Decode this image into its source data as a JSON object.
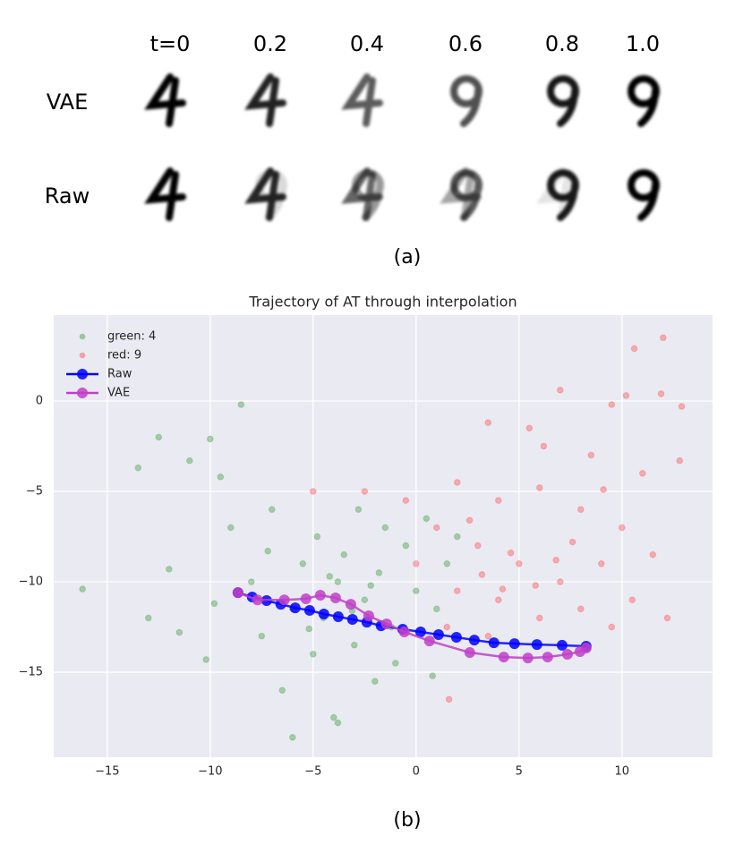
{
  "panel_a": {
    "column_labels": [
      "t=0",
      "0.2",
      "0.4",
      "0.6",
      "0.8",
      "1.0"
    ],
    "row_labels": [
      "VAE",
      "Raw"
    ],
    "caption": "(a)"
  },
  "chart_data": {
    "type": "scatter",
    "title": "Trajectory of AT through interpolation",
    "caption": "(b)",
    "xlim": [
      -17.6,
      14.4
    ],
    "ylim": [
      -19.7,
      4.75
    ],
    "xticks": [
      {
        "value": -15,
        "label": "−15"
      },
      {
        "value": -10,
        "label": "−10"
      },
      {
        "value": -5,
        "label": "−5"
      },
      0,
      5,
      10
    ],
    "yticks": [
      {
        "value": -15,
        "label": "−15"
      },
      {
        "value": -10,
        "label": "−10"
      },
      {
        "value": -5,
        "label": "−5"
      },
      0
    ],
    "grid": true,
    "legend": "upper left",
    "series": [
      {
        "name": "green: 4",
        "color": "#3a9a3a",
        "kind": "points",
        "x": [
          -16.2,
          -13.5,
          -12.5,
          -11,
          -10,
          -9.5,
          -8.5,
          -12,
          -11.5,
          -10.2,
          -9,
          -8,
          -7.5,
          -7,
          -6.5,
          -6,
          -5.5,
          -5,
          -4.8,
          -4.5,
          -4,
          -3.8,
          -3.5,
          -3,
          -2.8,
          -2.5,
          -2,
          -1.8,
          -1.5,
          -1.2,
          -1,
          -0.5,
          0,
          0.5,
          1,
          1.5,
          2,
          -6,
          -3.8,
          -13,
          -9.8,
          -7.2,
          -2.2,
          -4.2,
          -5.2,
          -3.1,
          0.8
        ],
        "values": [
          -10.4,
          -3.7,
          -2,
          -3.3,
          -2.1,
          -4.2,
          -0.2,
          -9.3,
          -12.8,
          -14.3,
          -7,
          -10,
          -13,
          -6,
          -16,
          -11.5,
          -9,
          -14,
          -7.5,
          -12,
          -17.5,
          -10,
          -8.5,
          -13.5,
          -6,
          -11,
          -15.5,
          -9.5,
          -7,
          -12.5,
          -14.5,
          -8,
          -10.5,
          -6.5,
          -11.5,
          -9,
          -7.5,
          -18.6,
          -17.8,
          -12,
          -11.2,
          -8.3,
          -10.2,
          -9.7,
          -12.6,
          -11.6,
          -15.2
        ]
      },
      {
        "name": "red: 9",
        "color": "#ff4a4a",
        "kind": "points",
        "x": [
          12,
          10.6,
          12.9,
          11.9,
          10.2,
          9.5,
          7,
          5.5,
          3.5,
          6.2,
          8.5,
          11,
          12.8,
          2,
          4,
          6,
          8,
          10,
          11.5,
          -0.5,
          1,
          3,
          5,
          7,
          9,
          10.5,
          12.2,
          0,
          2,
          4,
          6,
          8,
          9.5,
          3.2,
          4.6,
          5.8,
          6.8,
          4.2,
          2.6,
          7.6,
          -2.5,
          -5,
          1.5,
          3.5,
          1.6,
          9.1
        ],
        "values": [
          3.5,
          2.9,
          -0.3,
          0.4,
          0.3,
          -0.2,
          0.6,
          -1.5,
          -1.2,
          -2.5,
          -3,
          -4,
          -3.3,
          -4.5,
          -5.5,
          -4.8,
          -6,
          -7,
          -8.5,
          -5.5,
          -7,
          -8,
          -9,
          -10,
          -9,
          -11,
          -12,
          -9,
          -10.5,
          -11,
          -12,
          -11.5,
          -12.5,
          -9.6,
          -8.4,
          -10.2,
          -8.8,
          -10.4,
          -6.6,
          -7.8,
          -5,
          -5,
          -12.5,
          -13,
          -16.5,
          -4.9
        ]
      },
      {
        "name": "Raw",
        "color": "#0000ff",
        "kind": "line",
        "x": [
          -8.65,
          -7.96,
          -7.26,
          -6.57,
          -5.87,
          -5.17,
          -4.48,
          -3.78,
          -3.09,
          -2.39,
          -1.7,
          -0.65,
          0.22,
          1.09,
          1.96,
          2.83,
          3.78,
          4.78,
          5.87,
          7.09,
          8.26
        ],
        "values": [
          -10.6,
          -10.84,
          -11.04,
          -11.24,
          -11.44,
          -11.58,
          -11.78,
          -11.93,
          -12.08,
          -12.23,
          -12.43,
          -12.62,
          -12.77,
          -12.92,
          -13.07,
          -13.22,
          -13.37,
          -13.42,
          -13.47,
          -13.51,
          -13.56
        ]
      },
      {
        "name": "VAE",
        "color": "#c040c8",
        "kind": "line",
        "x": [
          -8.65,
          -7.7,
          -6.4,
          -5.35,
          -4.65,
          -3.91,
          -3.17,
          -2.3,
          -1.43,
          -0.57,
          0.65,
          2.61,
          4.26,
          5.43,
          6.39,
          7.35,
          7.96,
          8.26
        ],
        "values": [
          -10.6,
          -11,
          -11,
          -10.94,
          -10.74,
          -10.89,
          -11.24,
          -11.88,
          -12.33,
          -12.77,
          -13.27,
          -13.91,
          -14.16,
          -14.21,
          -14.16,
          -14.01,
          -13.86,
          -13.66
        ]
      }
    ]
  }
}
